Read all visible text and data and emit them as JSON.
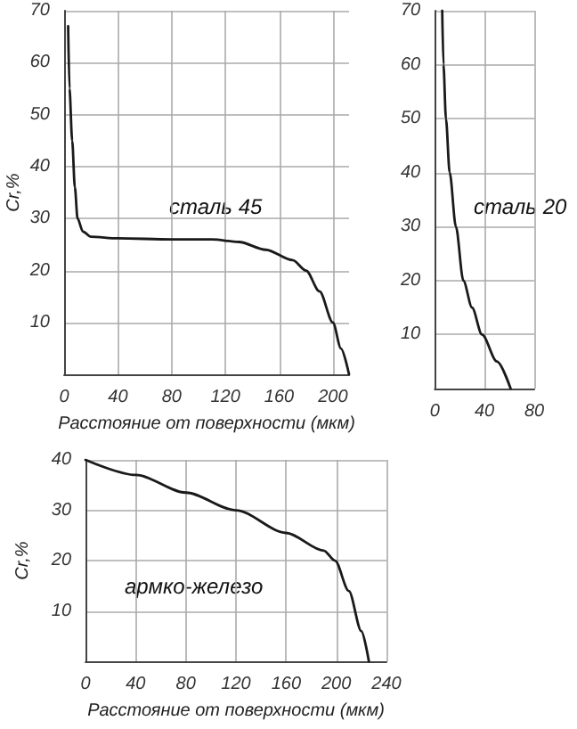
{
  "chart_data": [
    {
      "type": "line",
      "xlabel": "Расстояние от поверхности (мкм)",
      "ylabel": "Cr,%",
      "annotations": [
        "сталь 45"
      ],
      "grid": true,
      "marker": "none",
      "line_style": "solid",
      "xlim": [
        0,
        212
      ],
      "xticks": [
        0,
        40,
        80,
        120,
        160,
        200
      ],
      "ylim": [
        0,
        70
      ],
      "yticks": [
        10,
        20,
        30,
        40,
        50,
        60,
        70
      ],
      "series": [
        {
          "color": "#1a1a1a",
          "x": [
            3,
            4,
            6,
            8,
            10,
            14,
            20,
            40,
            80,
            110,
            130,
            150,
            170,
            180,
            190,
            200,
            206,
            212
          ],
          "values": [
            67,
            55,
            45,
            36,
            30,
            27.5,
            26.5,
            26.2,
            26,
            26,
            25.5,
            24,
            22,
            20,
            16,
            10,
            5,
            0
          ]
        }
      ]
    },
    {
      "type": "line",
      "annotations": [
        "сталь 20"
      ],
      "grid": true,
      "marker": "none",
      "line_style": "solid",
      "xlim": [
        0,
        80
      ],
      "xticks": [
        0,
        40,
        80
      ],
      "ylim": [
        0,
        70
      ],
      "yticks": [
        10,
        20,
        30,
        40,
        50,
        60,
        70
      ],
      "series": [
        {
          "color": "#1a1a1a",
          "x": [
            6,
            7,
            9,
            12,
            17,
            23,
            30,
            38,
            50,
            61
          ],
          "values": [
            70,
            60,
            50,
            40,
            30,
            20,
            15,
            10,
            5,
            0
          ]
        }
      ]
    },
    {
      "type": "line",
      "xlabel": "Расстояние от поверхности (мкм)",
      "ylabel": "Cr,%",
      "annotations": [
        "армко-железо"
      ],
      "grid": true,
      "marker": "none",
      "line_style": "solid",
      "xlim": [
        0,
        240
      ],
      "xticks": [
        0,
        40,
        80,
        120,
        160,
        200,
        240
      ],
      "ylim": [
        0,
        40
      ],
      "yticks": [
        10,
        20,
        30,
        40
      ],
      "series": [
        {
          "color": "#1a1a1a",
          "x": [
            0,
            40,
            80,
            120,
            160,
            190,
            199,
            210,
            220,
            226
          ],
          "values": [
            40,
            37,
            33.5,
            30,
            25.5,
            22,
            20,
            14,
            6,
            0
          ]
        }
      ]
    }
  ]
}
